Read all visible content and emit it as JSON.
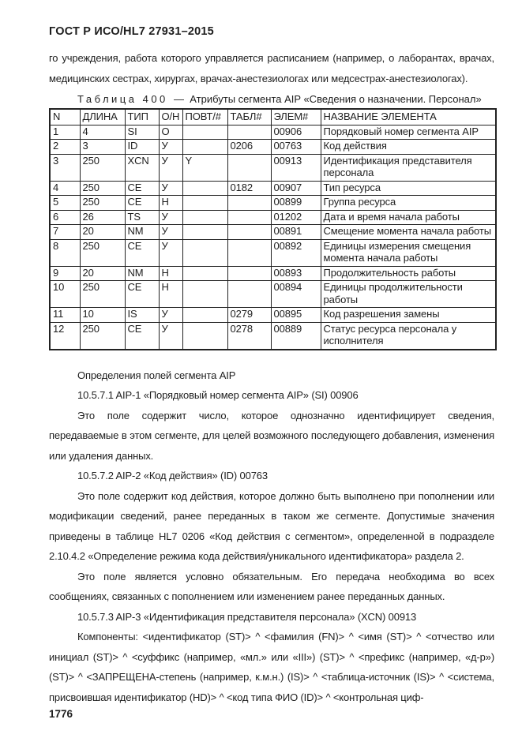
{
  "page": {
    "header": "ГОСТ Р ИСО/HL7 27931–2015",
    "page_number": "1776"
  },
  "intro_paragraph": "го учреждения, работа которого управляется расписанием (например, о лаборантах, врачах, медицинских сестрах, хирургах, врачах-анестезиологах или медсестрах-анестезиологах).",
  "table": {
    "caption_label": "Таблица 400",
    "caption_separator": "—",
    "caption_title": "Атрибуты сегмента AIP «Сведения о назначении. Персонал»",
    "columns": [
      "N",
      "ДЛИНА",
      "ТИП",
      "О/Н",
      "ПОВТ/#",
      "ТАБЛ#",
      "ЭЛЕМ#",
      "НАЗВАНИЕ ЭЛЕМЕНТА"
    ],
    "rows": [
      [
        "1",
        "4",
        "SI",
        "О",
        "",
        "",
        "00906",
        "Порядковый номер сегмента AIP"
      ],
      [
        "2",
        "3",
        "ID",
        "У",
        "",
        "0206",
        "00763",
        "Код действия"
      ],
      [
        "3",
        "250",
        "XCN",
        "У",
        "Y",
        "",
        "00913",
        "Идентификация представителя персонала"
      ],
      [
        "4",
        "250",
        "CE",
        "У",
        "",
        "0182",
        "00907",
        "Тип ресурса"
      ],
      [
        "5",
        "250",
        "CE",
        "Н",
        "",
        "",
        "00899",
        "Группа ресурса"
      ],
      [
        "6",
        "26",
        "TS",
        "У",
        "",
        "",
        "01202",
        "Дата и время начала работы"
      ],
      [
        "7",
        "20",
        "NM",
        "У",
        "",
        "",
        "00891",
        "Смещение момента начала работы"
      ],
      [
        "8",
        "250",
        "CE",
        "У",
        "",
        "",
        "00892",
        "Единицы измерения смещения момента начала работы"
      ],
      [
        "9",
        "20",
        "NM",
        "Н",
        "",
        "",
        "00893",
        "Продолжительность работы"
      ],
      [
        "10",
        "250",
        "CE",
        "Н",
        "",
        "",
        "00894",
        "Единицы продолжительности работы"
      ],
      [
        "11",
        "10",
        "IS",
        "У",
        "",
        "0279",
        "00895",
        "Код разрешения замены"
      ],
      [
        "12",
        "250",
        "CE",
        "У",
        "",
        "0278",
        "00889",
        "Статус ресурса персонала у исполнителя"
      ]
    ]
  },
  "sections": {
    "definitions_title": "Определения полей сегмента AIP",
    "heading_1": "10.5.7.1 AIP-1 «Порядковый номер сегмента AIP» (SI) 00906",
    "paragraph_1": "Это поле содержит число, которое однозначно идентифицирует сведения, передаваемые в этом сегменте, для целей возможного последующего добавления, изменения или удаления данных.",
    "heading_2": "10.5.7.2 AIP-2 «Код действия» (ID) 00763",
    "paragraph_2": "Это поле содержит код действия, которое должно быть выполнено при пополнении или модификации сведений, ранее переданных в таком же сегменте. Допустимые значения приведены в таблице HL7 0206 «Код действия с сегментом», определенной в подразделе 2.10.4.2 «Определение режима кода действия/уникального идентификатора» раздела 2.",
    "paragraph_3": "Это поле является условно обязательным. Его передача необходима во всех сообщениях, связанных с пополнением или изменением ранее переданных данных.",
    "heading_3": "10.5.7.3 AIP-3 «Идентификация представителя персонала» (XCN) 00913",
    "paragraph_4": "Компоненты: <идентификатор (ST)> ^ <фамилия (FN)> ^ <имя (ST)> ^ <отчество или инициал (ST)> ^ <суффикс (например, «мл.» или «III») (ST)> ^ <префикс (например, «д-р») (ST)> ^ <ЗАПРЕЩЕНА-степень (например, к.м.н.) (IS)> ^ <таблица-источник (IS)> ^ <система, присвоившая идентификатор (HD)> ^ <код типа ФИО (ID)> ^ <контрольная циф-"
  }
}
